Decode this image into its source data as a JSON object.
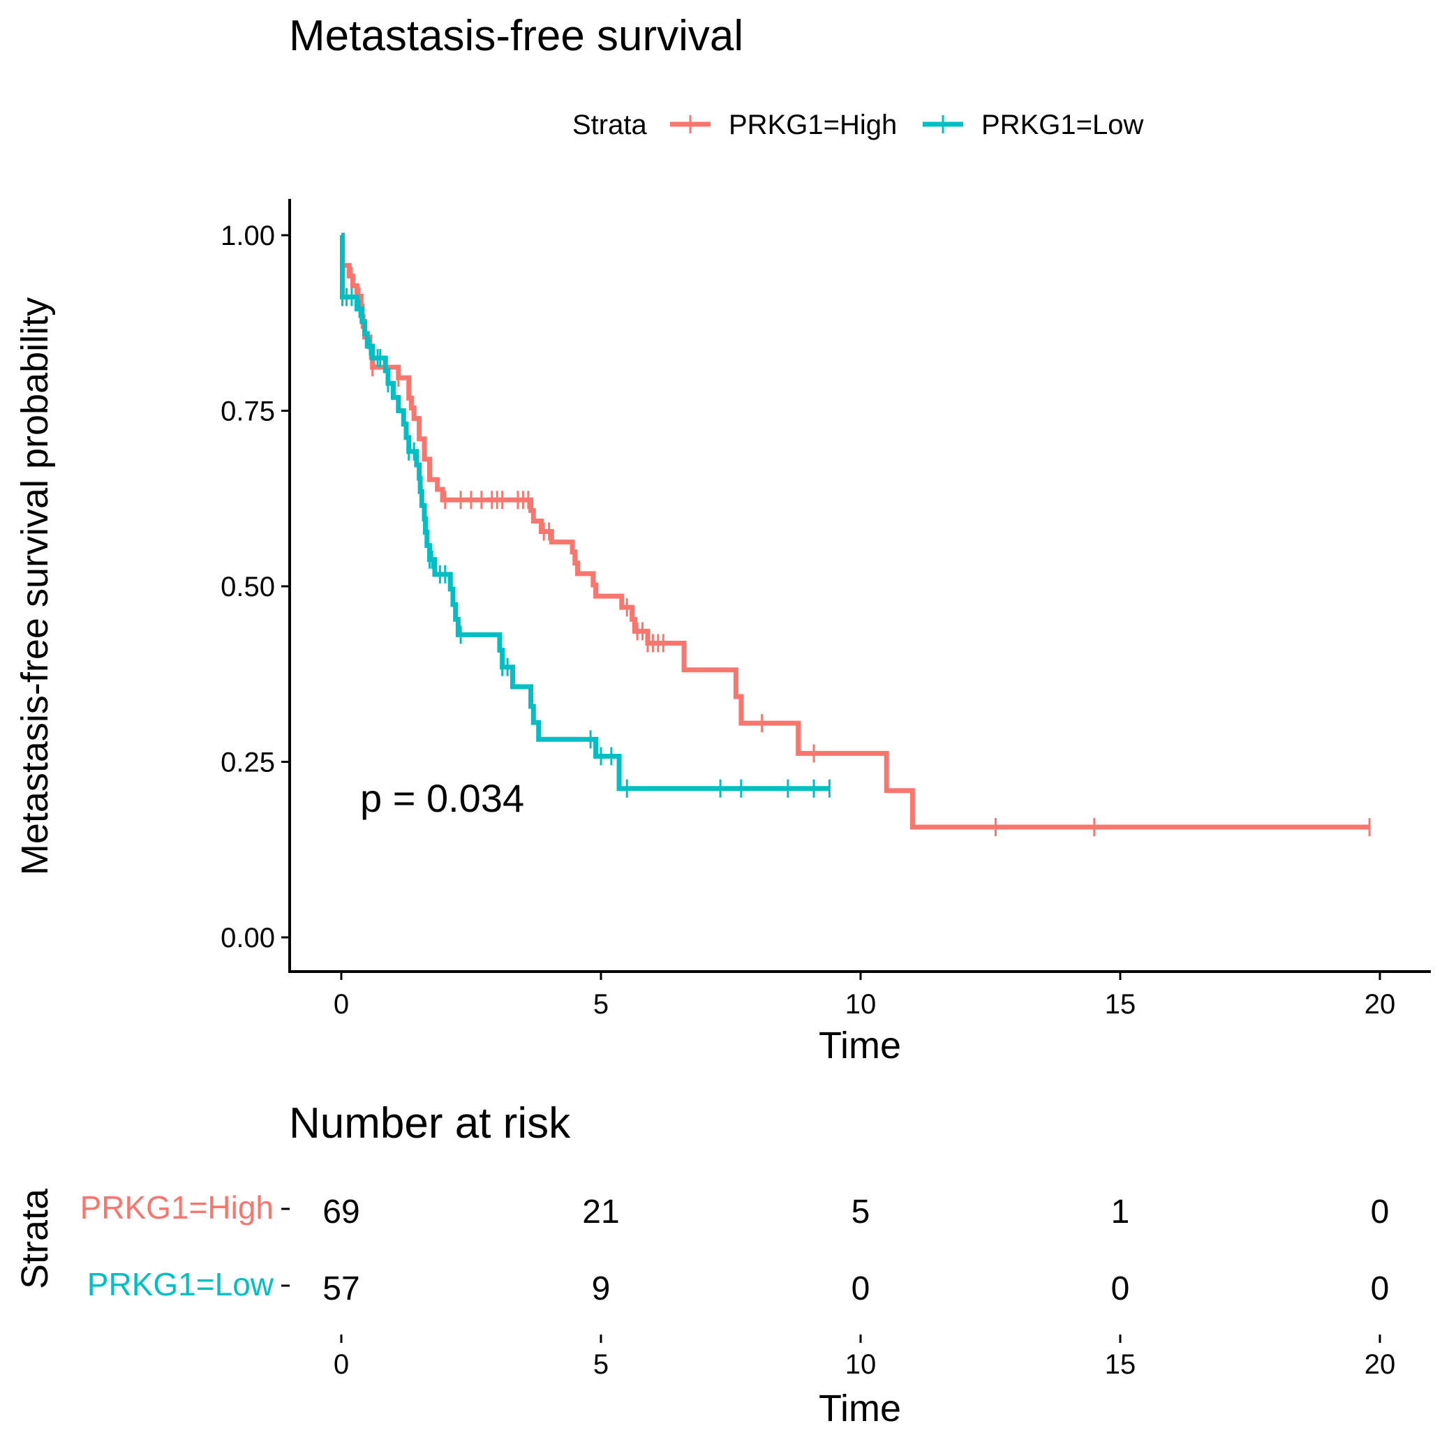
{
  "chart_data": {
    "type": "line",
    "title": "Metastasis-free survival",
    "xlabel": "Time",
    "ylabel": "Metastasis-free survival probability",
    "xlim": [
      0,
      20
    ],
    "ylim": [
      0,
      1
    ],
    "x_ticks": [
      "0",
      "5",
      "10",
      "15",
      "20"
    ],
    "y_ticks": [
      "0.00",
      "0.25",
      "0.50",
      "0.75",
      "1.00"
    ],
    "legend": {
      "title": "Strata",
      "position": "top",
      "entries": [
        "PRKG1=High",
        "PRKG1=Low"
      ]
    },
    "annotation": "p = 0.034",
    "series": [
      {
        "name": "PRKG1=High",
        "color": "#F8766D",
        "steps": [
          [
            0,
            0.957
          ],
          [
            0.15,
            0.942
          ],
          [
            0.22,
            0.928
          ],
          [
            0.3,
            0.913
          ],
          [
            0.38,
            0.899
          ],
          [
            0.4,
            0.884
          ],
          [
            0.42,
            0.87
          ],
          [
            0.45,
            0.855
          ],
          [
            0.55,
            0.841
          ],
          [
            0.58,
            0.826
          ],
          [
            0.6,
            0.812
          ],
          [
            1.1,
            0.797
          ],
          [
            1.3,
            0.768
          ],
          [
            1.35,
            0.754
          ],
          [
            1.4,
            0.739
          ],
          [
            1.5,
            0.71
          ],
          [
            1.6,
            0.681
          ],
          [
            1.7,
            0.652
          ],
          [
            1.85,
            0.638
          ],
          [
            1.95,
            0.623
          ],
          [
            3.65,
            0.608
          ],
          [
            3.7,
            0.593
          ],
          [
            3.85,
            0.578
          ],
          [
            4.05,
            0.563
          ],
          [
            4.45,
            0.549
          ],
          [
            4.5,
            0.533
          ],
          [
            4.55,
            0.518
          ],
          [
            4.85,
            0.502
          ],
          [
            4.9,
            0.486
          ],
          [
            5.4,
            0.47
          ],
          [
            5.6,
            0.453
          ],
          [
            5.65,
            0.436
          ],
          [
            5.9,
            0.419
          ],
          [
            6.6,
            0.381
          ],
          [
            7.6,
            0.343
          ],
          [
            7.7,
            0.305
          ],
          [
            8.8,
            0.262
          ],
          [
            10.5,
            0.209
          ],
          [
            11.0,
            0.157
          ],
          [
            19.8,
            0.157
          ]
        ],
        "censor_x": [
          0,
          0.2,
          0.35,
          0.6,
          1.1,
          2.0,
          2.3,
          2.5,
          2.7,
          2.9,
          3.0,
          3.1,
          3.4,
          3.5,
          3.6,
          3.9,
          4.0,
          5.5,
          5.7,
          5.8,
          5.9,
          6.0,
          6.1,
          6.2,
          8.1,
          9.1,
          12.6,
          14.5,
          19.8
        ]
      },
      {
        "name": "PRKG1=Low",
        "color": "#00BFC4",
        "steps": [
          [
            0,
            1.0
          ],
          [
            0.02,
            0.912
          ],
          [
            0.3,
            0.895
          ],
          [
            0.4,
            0.877
          ],
          [
            0.45,
            0.86
          ],
          [
            0.5,
            0.842
          ],
          [
            0.6,
            0.825
          ],
          [
            0.85,
            0.807
          ],
          [
            0.9,
            0.789
          ],
          [
            1.0,
            0.769
          ],
          [
            1.1,
            0.75
          ],
          [
            1.2,
            0.731
          ],
          [
            1.25,
            0.712
          ],
          [
            1.3,
            0.692
          ],
          [
            1.45,
            0.673
          ],
          [
            1.5,
            0.654
          ],
          [
            1.52,
            0.635
          ],
          [
            1.55,
            0.615
          ],
          [
            1.6,
            0.596
          ],
          [
            1.62,
            0.577
          ],
          [
            1.65,
            0.558
          ],
          [
            1.7,
            0.538
          ],
          [
            1.8,
            0.517
          ],
          [
            2.1,
            0.496
          ],
          [
            2.15,
            0.474
          ],
          [
            2.2,
            0.453
          ],
          [
            2.25,
            0.431
          ],
          [
            3.05,
            0.409
          ],
          [
            3.1,
            0.385
          ],
          [
            3.3,
            0.357
          ],
          [
            3.65,
            0.329
          ],
          [
            3.7,
            0.306
          ],
          [
            3.8,
            0.282
          ],
          [
            4.9,
            0.258
          ],
          [
            5.35,
            0.212
          ],
          [
            9.4,
            0.212
          ]
        ],
        "censor_x": [
          0.02,
          0.1,
          0.2,
          0.35,
          0.55,
          0.7,
          0.75,
          0.9,
          1.3,
          1.4,
          1.7,
          1.75,
          1.9,
          2.0,
          2.3,
          3.1,
          3.2,
          4.8,
          5.0,
          5.2,
          5.5,
          7.3,
          7.7,
          8.6,
          9.1,
          9.4
        ]
      }
    ],
    "risk_table": {
      "title": "Number at risk",
      "ylabel": "Strata",
      "xlabel": "Time",
      "times": [
        0,
        5,
        10,
        15,
        20
      ],
      "x_ticks": [
        "0",
        "5",
        "10",
        "15",
        "20"
      ],
      "rows": [
        {
          "label": "PRKG1=High",
          "color": "#F8766D",
          "values": [
            "69",
            "21",
            "5",
            "1",
            "0"
          ]
        },
        {
          "label": "PRKG1=Low",
          "color": "#00BFC4",
          "values": [
            "57",
            "9",
            "0",
            "0",
            "0"
          ]
        }
      ]
    }
  }
}
